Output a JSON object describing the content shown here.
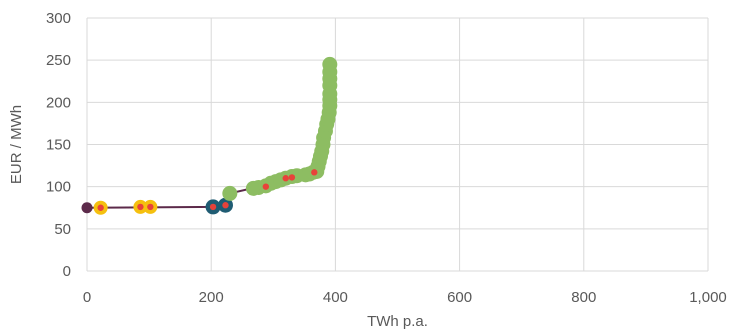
{
  "chart_data": {
    "type": "scatter",
    "title": "",
    "xlabel": "TWh p.a.",
    "ylabel": "EUR / MWh",
    "xlim": [
      0,
      1000
    ],
    "ylim": [
      0,
      300
    ],
    "x_ticks": [
      "0",
      "200",
      "400",
      "600",
      "800",
      "1,000"
    ],
    "y_ticks": [
      "0",
      "50",
      "100",
      "150",
      "200",
      "250",
      "300"
    ],
    "grid": true,
    "legend": "none",
    "colors": {
      "line": "#5c2a4a",
      "start_point": "#5c2a4a",
      "yellow": "#f5c00f",
      "teal": "#1f5c73",
      "green": "#8dbd62",
      "red": "#e8423a",
      "grid": "#d9d9d9",
      "text": "#595959"
    },
    "line_series": {
      "x": [
        0,
        210,
        225,
        230,
        265,
        290,
        315,
        340,
        355,
        370,
        378,
        385,
        392
      ],
      "y": [
        75,
        76,
        78,
        92,
        98,
        102,
        108,
        112,
        114,
        118,
        140,
        170,
        195
      ]
    },
    "series": [
      {
        "kind": "start",
        "color": "#5c2a4a",
        "points": [
          {
            "x": 0,
            "y": 75
          }
        ]
      },
      {
        "kind": "yellow",
        "color": "#f5c00f",
        "points": [
          {
            "x": 22,
            "y": 75
          },
          {
            "x": 86,
            "y": 76
          },
          {
            "x": 102,
            "y": 76
          }
        ]
      },
      {
        "kind": "teal",
        "color": "#1f5c73",
        "points": [
          {
            "x": 203,
            "y": 76
          },
          {
            "x": 223,
            "y": 78
          }
        ]
      },
      {
        "kind": "green",
        "color": "#8dbd62",
        "points": [
          {
            "x": 230,
            "y": 92
          },
          {
            "x": 268,
            "y": 98
          },
          {
            "x": 276,
            "y": 99
          },
          {
            "x": 288,
            "y": 101
          },
          {
            "x": 296,
            "y": 104
          },
          {
            "x": 304,
            "y": 106
          },
          {
            "x": 312,
            "y": 108
          },
          {
            "x": 320,
            "y": 110
          },
          {
            "x": 330,
            "y": 112
          },
          {
            "x": 338,
            "y": 113
          },
          {
            "x": 352,
            "y": 114
          },
          {
            "x": 358,
            "y": 115
          },
          {
            "x": 364,
            "y": 117
          },
          {
            "x": 370,
            "y": 118
          },
          {
            "x": 372,
            "y": 124
          },
          {
            "x": 374,
            "y": 130
          },
          {
            "x": 376,
            "y": 136
          },
          {
            "x": 378,
            "y": 142
          },
          {
            "x": 380,
            "y": 150
          },
          {
            "x": 381,
            "y": 158
          },
          {
            "x": 384,
            "y": 166
          },
          {
            "x": 386,
            "y": 174
          },
          {
            "x": 388,
            "y": 180
          },
          {
            "x": 390,
            "y": 188
          },
          {
            "x": 391,
            "y": 196
          },
          {
            "x": 391,
            "y": 203
          },
          {
            "x": 391,
            "y": 210
          },
          {
            "x": 391,
            "y": 220
          },
          {
            "x": 391,
            "y": 228
          },
          {
            "x": 391,
            "y": 236
          },
          {
            "x": 391,
            "y": 245
          }
        ]
      },
      {
        "kind": "red",
        "color": "#e8423a",
        "points": [
          {
            "x": 22,
            "y": 75
          },
          {
            "x": 86,
            "y": 76
          },
          {
            "x": 102,
            "y": 76
          },
          {
            "x": 203,
            "y": 76
          },
          {
            "x": 223,
            "y": 78
          },
          {
            "x": 288,
            "y": 100
          },
          {
            "x": 320,
            "y": 110
          },
          {
            "x": 330,
            "y": 111
          },
          {
            "x": 366,
            "y": 117
          }
        ]
      }
    ]
  }
}
